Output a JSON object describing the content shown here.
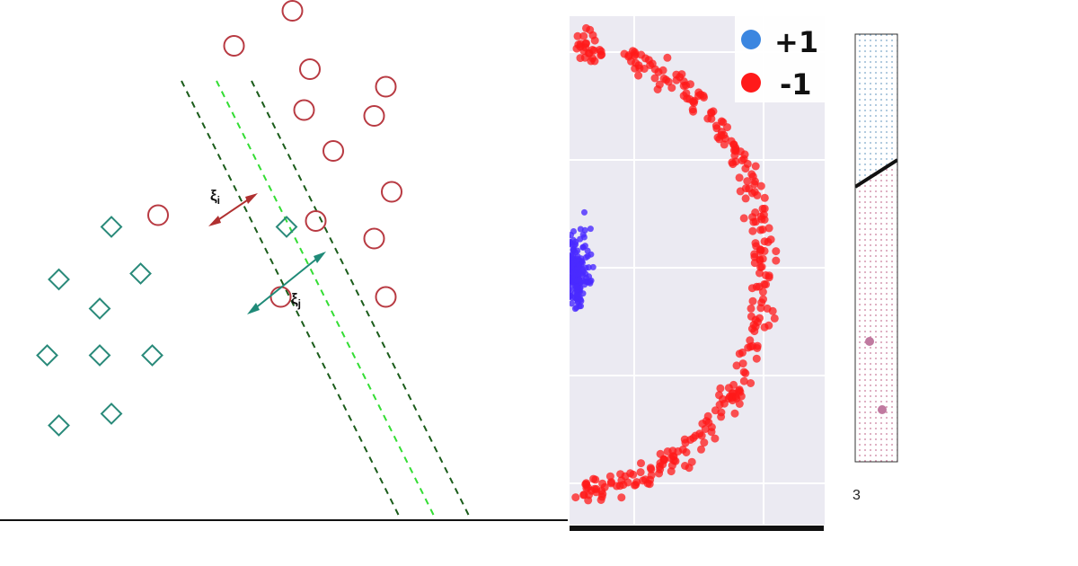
{
  "chart_data": [
    {
      "type": "scatter",
      "description_kind": "svm-soft-margin",
      "series": [
        {
          "marker": "circle",
          "color": "#b83a42",
          "points": [
            [
              1.7,
              7.6
            ],
            [
              2.7,
              8.2
            ],
            [
              3.0,
              7.2
            ],
            [
              2.9,
              6.5
            ],
            [
              3.4,
              5.8
            ],
            [
              4.1,
              6.4
            ],
            [
              4.3,
              6.9
            ],
            [
              4.4,
              5.1
            ],
            [
              3.1,
              4.6
            ],
            [
              4.1,
              4.3
            ],
            [
              2.5,
              3.3
            ],
            [
              4.3,
              3.3
            ],
            [
              0.4,
              4.7
            ]
          ]
        },
        {
          "marker": "diamond",
          "color": "#2a8a7a",
          "points": [
            [
              -0.4,
              4.5
            ],
            [
              -1.3,
              3.6
            ],
            [
              0.1,
              3.7
            ],
            [
              -0.6,
              3.1
            ],
            [
              -1.5,
              2.3
            ],
            [
              -0.6,
              2.3
            ],
            [
              0.3,
              2.3
            ],
            [
              -0.4,
              1.3
            ],
            [
              -1.3,
              1.1
            ],
            [
              2.6,
              4.5
            ]
          ]
        }
      ],
      "boundaries": [
        {
          "role": "margin",
          "color": "#1a5c1a",
          "dash": true,
          "slope": -2.0,
          "intercept": 8.6
        },
        {
          "role": "decision",
          "color": "#33dd33",
          "dash": true,
          "slope": -2.0,
          "intercept": 9.8
        },
        {
          "role": "margin",
          "color": "#1a5c1a",
          "dash": true,
          "slope": -2.0,
          "intercept": 11.0
        }
      ],
      "annotations": [
        {
          "text": "ξ",
          "sub": "i",
          "color": "#b03030"
        },
        {
          "text": "ξ",
          "sub": "j",
          "color": "#1f8a78"
        }
      ]
    },
    {
      "type": "scatter",
      "description_kind": "concentric-classes",
      "legend": [
        {
          "label": "+1",
          "color": "#3b86e0"
        },
        {
          "label": "-1",
          "color": "#ff1a1a"
        }
      ],
      "legend_position": "top-right",
      "grid": true,
      "series": [
        {
          "label": "+1",
          "color": "#4a2bff",
          "shape": "cluster",
          "center": [
            0.0,
            0.0
          ],
          "spread": 0.5
        },
        {
          "label": "-1",
          "color": "#ff1a1a",
          "shape": "ring",
          "center": [
            0.0,
            0.0
          ],
          "radius": 3.0
        }
      ]
    },
    {
      "type": "scatter",
      "description_kind": "decision-region-crop",
      "regions": [
        {
          "color": "#7aa6c8"
        },
        {
          "color": "#c87a9a"
        }
      ],
      "points": [
        [
          0.2,
          0.43
        ],
        [
          0.4,
          0.22
        ]
      ],
      "point_color": "#c07aa0",
      "fragment_text": "3"
    }
  ]
}
